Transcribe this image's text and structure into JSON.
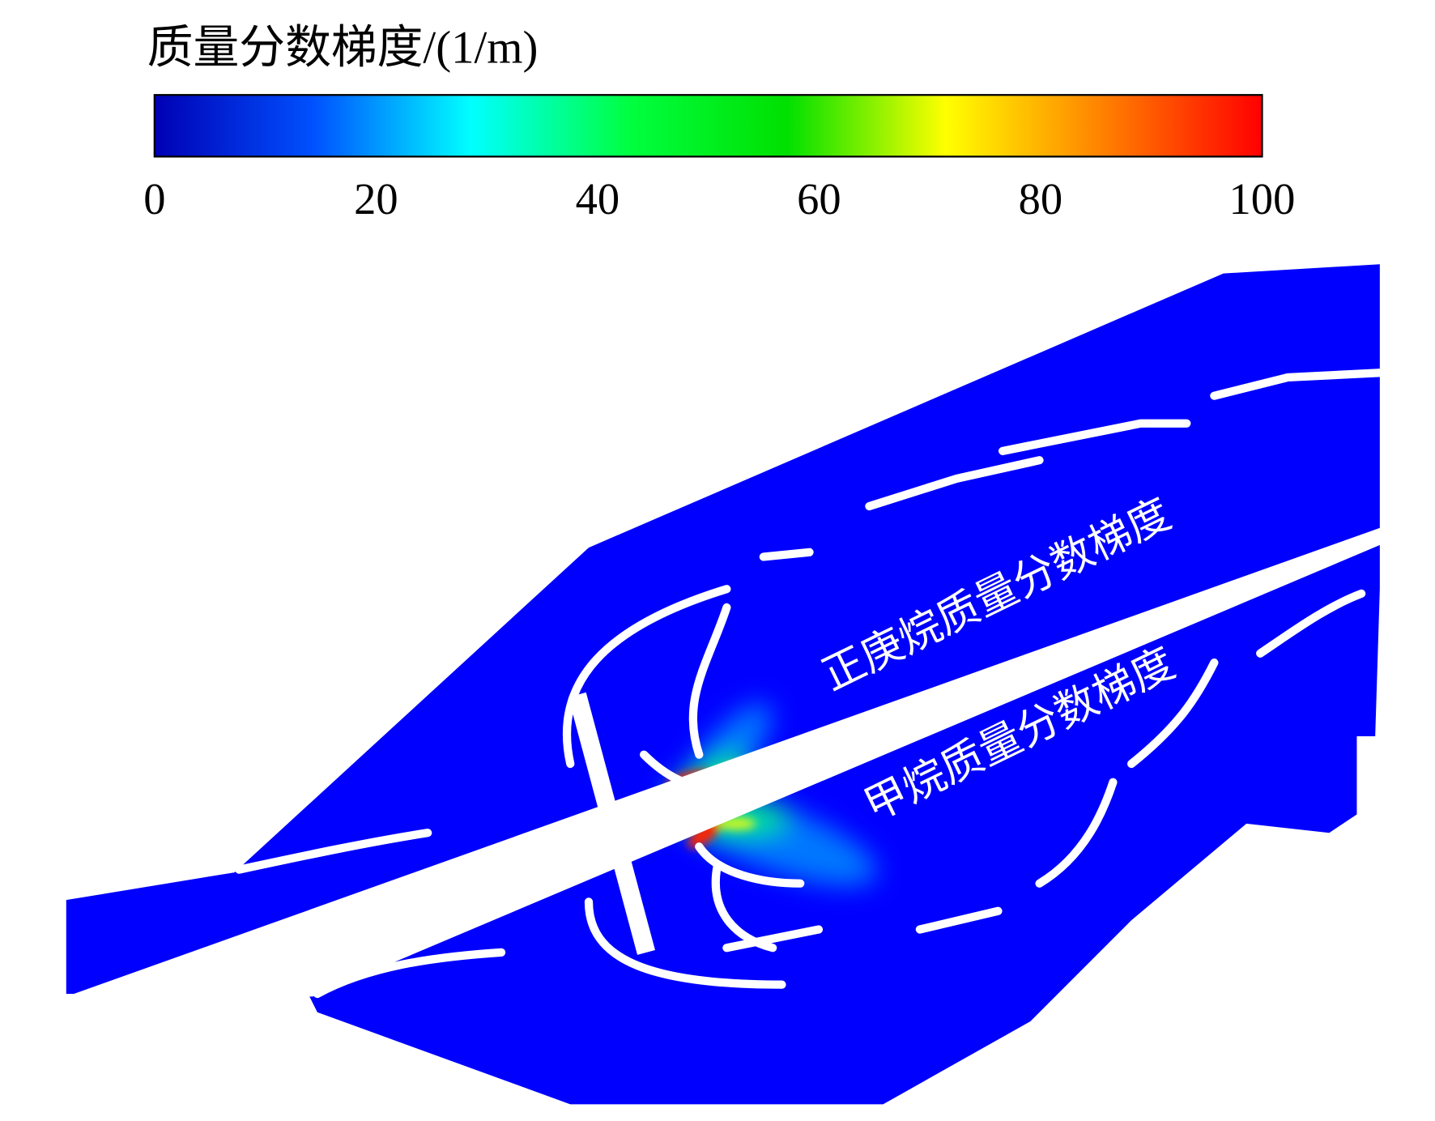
{
  "chart_data": {
    "type": "contour",
    "title": "质量分数梯度/(1/m)",
    "colorbar": {
      "clim": [
        0,
        100
      ],
      "ticks": [
        0,
        20,
        40,
        60,
        80,
        100
      ],
      "colors": [
        "#0000b4",
        "#0050ff",
        "#00ffff",
        "#00ff40",
        "#00e000",
        "#ffff00",
        "#ff8000",
        "#ff0000"
      ]
    },
    "field_color": "#0000ff",
    "annotations": [
      "正庚烷质量分数梯度",
      "甲烷质量分数梯度"
    ]
  }
}
